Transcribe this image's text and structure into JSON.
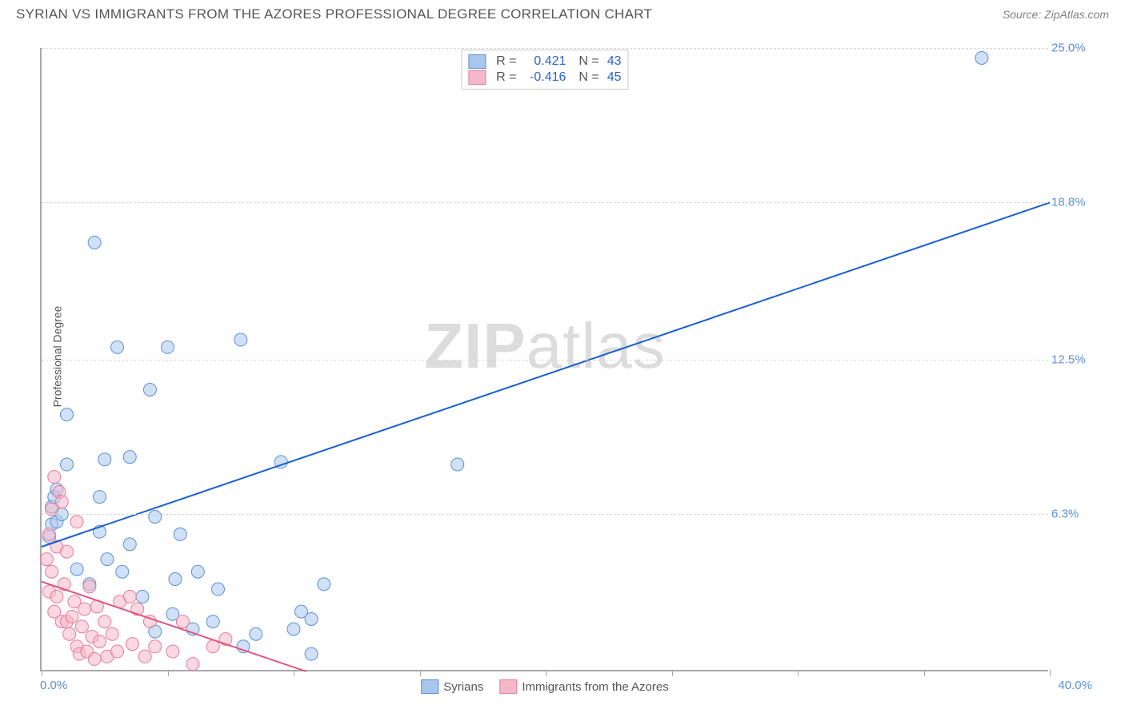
{
  "header": {
    "title": "SYRIAN VS IMMIGRANTS FROM THE AZORES PROFESSIONAL DEGREE CORRELATION CHART",
    "source_label": "Source: ZipAtlas.com"
  },
  "watermark": {
    "zip": "ZIP",
    "atlas": "atlas"
  },
  "chart": {
    "type": "scatter",
    "ylabel": "Professional Degree",
    "xlim": [
      0,
      40
    ],
    "ylim": [
      0,
      25
    ],
    "background_color": "#ffffff",
    "axis_color": "#a8a8a8",
    "grid_color": "#d8d8d8",
    "grid_dash": true,
    "origin_label": "0.0%",
    "xmax_label": "40.0%",
    "ytick_labels": [
      "6.3%",
      "12.5%",
      "18.8%",
      "25.0%"
    ],
    "ytick_values": [
      6.3,
      12.5,
      18.8,
      25.0
    ],
    "xtick_values": [
      0,
      5,
      10,
      15,
      20,
      25,
      30,
      35,
      40
    ],
    "tick_label_color": "#5b8fd8",
    "marker_radius": 8,
    "marker_stroke_width": 1,
    "trend_line_width": 2,
    "series": [
      {
        "name": "Syrians",
        "fill_color": "#a9c6ec",
        "fill_opacity": 0.55,
        "stroke_color": "#5b8fd8",
        "trend_color": "#1a5fd0",
        "r_value": "0.421",
        "n_value": "43",
        "trend_line": {
          "x1": 0,
          "y1": 5.0,
          "x2": 40,
          "y2": 18.8
        },
        "points": [
          [
            0.3,
            5.4
          ],
          [
            0.4,
            5.9
          ],
          [
            0.4,
            6.6
          ],
          [
            0.5,
            7.0
          ],
          [
            0.6,
            6.0
          ],
          [
            0.6,
            7.3
          ],
          [
            0.8,
            6.3
          ],
          [
            1.0,
            8.3
          ],
          [
            1.0,
            10.3
          ],
          [
            1.4,
            4.1
          ],
          [
            1.9,
            3.5
          ],
          [
            2.1,
            17.2
          ],
          [
            2.3,
            5.6
          ],
          [
            2.3,
            7.0
          ],
          [
            2.6,
            4.5
          ],
          [
            2.5,
            8.5
          ],
          [
            3.0,
            13.0
          ],
          [
            3.2,
            4.0
          ],
          [
            3.5,
            8.6
          ],
          [
            3.5,
            5.1
          ],
          [
            4.0,
            3.0
          ],
          [
            4.3,
            11.3
          ],
          [
            4.5,
            1.6
          ],
          [
            4.5,
            6.2
          ],
          [
            5.0,
            13.0
          ],
          [
            5.2,
            2.3
          ],
          [
            5.3,
            3.7
          ],
          [
            5.5,
            5.5
          ],
          [
            6.0,
            1.7
          ],
          [
            6.2,
            4.0
          ],
          [
            6.8,
            2.0
          ],
          [
            7.0,
            3.3
          ],
          [
            7.9,
            13.3
          ],
          [
            8.0,
            1.0
          ],
          [
            8.5,
            1.5
          ],
          [
            9.5,
            8.4
          ],
          [
            10.0,
            1.7
          ],
          [
            10.3,
            2.4
          ],
          [
            10.7,
            2.1
          ],
          [
            10.7,
            0.7
          ],
          [
            11.2,
            3.5
          ],
          [
            16.5,
            8.3
          ],
          [
            37.3,
            24.6
          ]
        ]
      },
      {
        "name": "Immigrants from the Azores",
        "fill_color": "#f5b8c8",
        "fill_opacity": 0.55,
        "stroke_color": "#e77a9a",
        "trend_color": "#e05580",
        "r_value": "-0.416",
        "n_value": "45",
        "trend_line": {
          "x1": 0,
          "y1": 3.6,
          "x2": 10.5,
          "y2": 0
        },
        "points": [
          [
            0.2,
            4.5
          ],
          [
            0.3,
            3.2
          ],
          [
            0.3,
            5.5
          ],
          [
            0.4,
            4.0
          ],
          [
            0.4,
            6.5
          ],
          [
            0.5,
            2.4
          ],
          [
            0.5,
            7.8
          ],
          [
            0.6,
            3.0
          ],
          [
            0.6,
            5.0
          ],
          [
            0.7,
            7.2
          ],
          [
            0.8,
            2.0
          ],
          [
            0.8,
            6.8
          ],
          [
            0.9,
            3.5
          ],
          [
            1.0,
            2.0
          ],
          [
            1.0,
            4.8
          ],
          [
            1.1,
            1.5
          ],
          [
            1.2,
            2.2
          ],
          [
            1.3,
            2.8
          ],
          [
            1.4,
            1.0
          ],
          [
            1.4,
            6.0
          ],
          [
            1.5,
            0.7
          ],
          [
            1.6,
            1.8
          ],
          [
            1.7,
            2.5
          ],
          [
            1.8,
            0.8
          ],
          [
            1.9,
            3.4
          ],
          [
            2.0,
            1.4
          ],
          [
            2.1,
            0.5
          ],
          [
            2.2,
            2.6
          ],
          [
            2.3,
            1.2
          ],
          [
            2.5,
            2.0
          ],
          [
            2.6,
            0.6
          ],
          [
            2.8,
            1.5
          ],
          [
            3.0,
            0.8
          ],
          [
            3.1,
            2.8
          ],
          [
            3.5,
            3.0
          ],
          [
            3.6,
            1.1
          ],
          [
            3.8,
            2.5
          ],
          [
            4.1,
            0.6
          ],
          [
            4.3,
            2.0
          ],
          [
            4.5,
            1.0
          ],
          [
            5.2,
            0.8
          ],
          [
            5.6,
            2.0
          ],
          [
            6.0,
            0.3
          ],
          [
            6.8,
            1.0
          ],
          [
            7.3,
            1.3
          ]
        ]
      }
    ],
    "legend_top_labels": {
      "r": "R =",
      "n": "N ="
    },
    "legend_bottom": [
      {
        "label": "Syrians",
        "fill": "#a9c6ec",
        "stroke": "#5b8fd8"
      },
      {
        "label": "Immigrants from the Azores",
        "fill": "#f5b8c8",
        "stroke": "#e77a9a"
      }
    ]
  }
}
